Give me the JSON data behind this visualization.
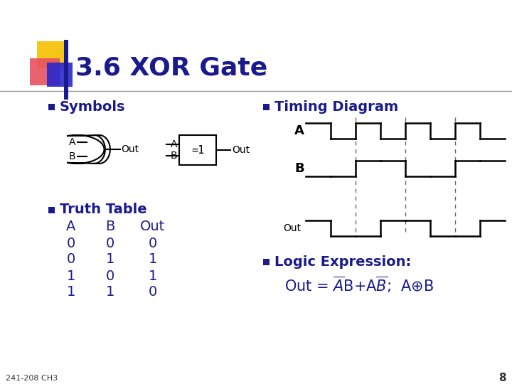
{
  "title": "3.6 XOR Gate",
  "title_color": "#1a1a8c",
  "title_fontsize": 26,
  "bg_color": "#ffffff",
  "bullet_color": "#1a1a8c",
  "text_color": "#1a1a8c",
  "slide_number": "8",
  "footer": "241-208 CH3",
  "symbols_label": "Symbols",
  "timing_label": "Timing Diagram",
  "truth_label": "Truth Table",
  "logic_label": "Logic Expression:",
  "truth_headers": [
    "A",
    "B",
    "Out"
  ],
  "truth_rows": [
    [
      0,
      0,
      0
    ],
    [
      0,
      1,
      1
    ],
    [
      1,
      0,
      1
    ],
    [
      1,
      1,
      0
    ]
  ],
  "accent_colors": {
    "yellow": "#f5c518",
    "red": "#e85060",
    "blue": "#2828cc",
    "dark_blue": "#1a1a8c"
  },
  "gate_a_segs": [
    1,
    0,
    1,
    0,
    1,
    0,
    1,
    0
  ],
  "gate_b_segs": [
    0,
    0,
    1,
    1,
    0,
    0,
    1,
    1
  ],
  "gate_out_segs": [
    1,
    0,
    0,
    1,
    1,
    0,
    0,
    1
  ]
}
